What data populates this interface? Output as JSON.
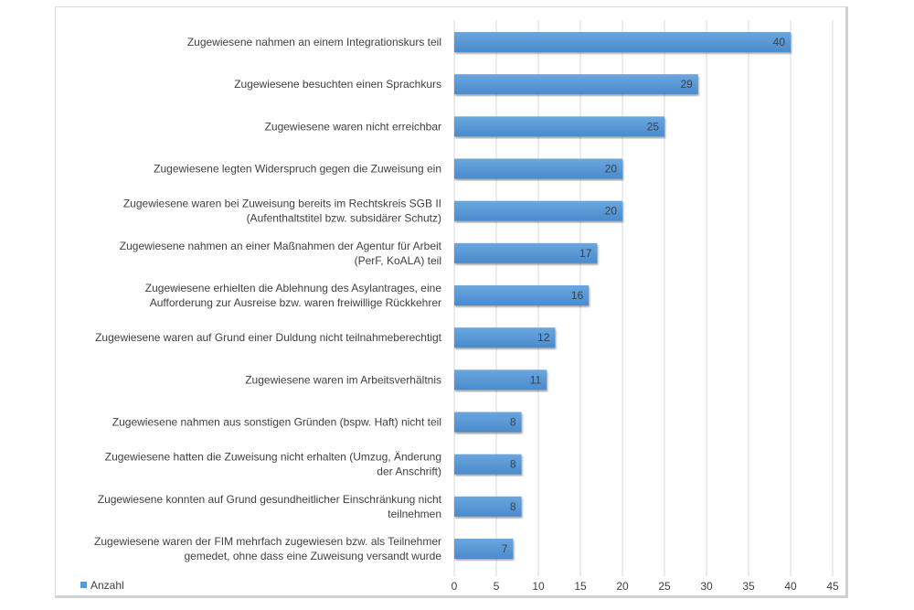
{
  "chart_data": {
    "type": "bar",
    "orientation": "horizontal",
    "categories": [
      [
        "Zugewiesene nahmen an einem Integrationskurs teil"
      ],
      [
        "Zugewiesene besuchten einen Sprachkurs"
      ],
      [
        "Zugewiesene waren nicht erreichbar"
      ],
      [
        "Zugewiesene legten Widerspruch gegen die Zuweisung ein"
      ],
      [
        "Zugewiesene waren bei Zuweisung bereits im Rechtskreis SGB II",
        "(Aufenthaltstitel bzw. subsidärer Schutz)"
      ],
      [
        "Zugewiesene nahmen an einer Maßnahmen der Agentur für Arbeit",
        "(PerF, KoALA) teil"
      ],
      [
        "Zugewiesene erhielten die Ablehnung des Asylantrages, eine",
        "Aufforderung zur Ausreise bzw. waren freiwillige Rückkehrer"
      ],
      [
        "Zugewiesene waren auf Grund einer Duldung nicht teilnahmeberechtigt"
      ],
      [
        "Zugewiesene waren im Arbeitsverhältnis"
      ],
      [
        "Zugewiesene nahmen aus sonstigen Gründen (bspw. Haft) nicht teil"
      ],
      [
        "Zugewiesene hatten die Zuweisung nicht erhalten (Umzug, Änderung",
        "der Anschrift)"
      ],
      [
        "Zugewiesene konnten auf Grund gesundheitlicher Einschränkung nicht",
        "teilnehmen"
      ],
      [
        "Zugewiesene  waren der FIM mehrfach zugewiesen bzw. als Teilnehmer",
        "gemedet, ohne dass eine Zuweisung versandt wurde"
      ]
    ],
    "series": [
      {
        "name": "Anzahl",
        "values": [
          40,
          29,
          25,
          20,
          20,
          17,
          16,
          12,
          11,
          8,
          8,
          8,
          7
        ]
      }
    ],
    "xlim": [
      0,
      45
    ],
    "xticks": [
      0,
      5,
      10,
      15,
      20,
      25,
      30,
      35,
      40,
      45
    ],
    "grid": true,
    "legend_placement": "bottom-left",
    "data_labels": true,
    "bar_color": "#5b9bd5"
  }
}
